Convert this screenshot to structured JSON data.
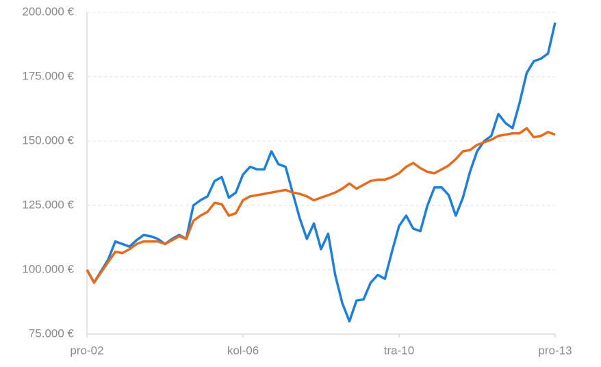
{
  "chart_data": {
    "type": "line",
    "categories": [
      "pro-02",
      null,
      null,
      null,
      null,
      null,
      null,
      null,
      null,
      null,
      null,
      null,
      null,
      null,
      null,
      null,
      null,
      null,
      null,
      null,
      null,
      null,
      "kol-06",
      null,
      null,
      null,
      null,
      null,
      null,
      null,
      null,
      null,
      null,
      null,
      null,
      null,
      null,
      null,
      null,
      null,
      null,
      null,
      null,
      null,
      "tra-10",
      null,
      null,
      null,
      null,
      null,
      null,
      null,
      null,
      null,
      null,
      null,
      null,
      null,
      null,
      null,
      null,
      null,
      null,
      null,
      null,
      null,
      "pro-13"
    ],
    "series": [
      {
        "color": "#1a7fe0",
        "values": [
          100000,
          95000,
          99500,
          104000,
          111000,
          110000,
          109000,
          111500,
          113500,
          113000,
          112000,
          110000,
          112000,
          113500,
          112000,
          125000,
          127000,
          128500,
          134500,
          136000,
          128000,
          130000,
          137000,
          140000,
          139000,
          139000,
          146000,
          141000,
          140000,
          130000,
          120000,
          112000,
          118000,
          108000,
          114000,
          98000,
          87000,
          80000,
          88000,
          88500,
          95000,
          98000,
          96500,
          107000,
          117000,
          121000,
          116000,
          115000,
          125000,
          132000,
          132000,
          129000,
          121000,
          128000,
          138000,
          146000,
          150000,
          152000,
          160500,
          157000,
          155000,
          165000,
          176500,
          181000,
          182000,
          184000,
          196000
        ]
      },
      {
        "color": "#e86a1a",
        "values": [
          100000,
          95000,
          99000,
          103000,
          107000,
          106500,
          108000,
          110000,
          111000,
          111000,
          111000,
          110000,
          111500,
          113000,
          112000,
          119000,
          121000,
          122500,
          126000,
          125500,
          121000,
          122000,
          127000,
          128500,
          129000,
          129500,
          130000,
          130500,
          131000,
          130000,
          129500,
          128500,
          127000,
          128000,
          129000,
          130000,
          131500,
          133500,
          131500,
          133000,
          134500,
          135000,
          135000,
          136000,
          137500,
          140000,
          141500,
          139500,
          138000,
          137500,
          139000,
          140500,
          143000,
          146000,
          146500,
          148500,
          149500,
          150500,
          152000,
          152500,
          153000,
          153000,
          155000,
          151500,
          152000,
          153500,
          152500
        ]
      }
    ],
    "ylim": [
      75000,
      200000
    ],
    "yticks": [
      {
        "value": 75000,
        "label": "75.000 €"
      },
      {
        "value": 100000,
        "label": "100.000 €"
      },
      {
        "value": 125000,
        "label": "125.000 €"
      },
      {
        "value": 150000,
        "label": "150.000 €"
      },
      {
        "value": 175000,
        "label": "175.000 €"
      },
      {
        "value": 200000,
        "label": "200.000 €"
      }
    ],
    "grid": true
  }
}
